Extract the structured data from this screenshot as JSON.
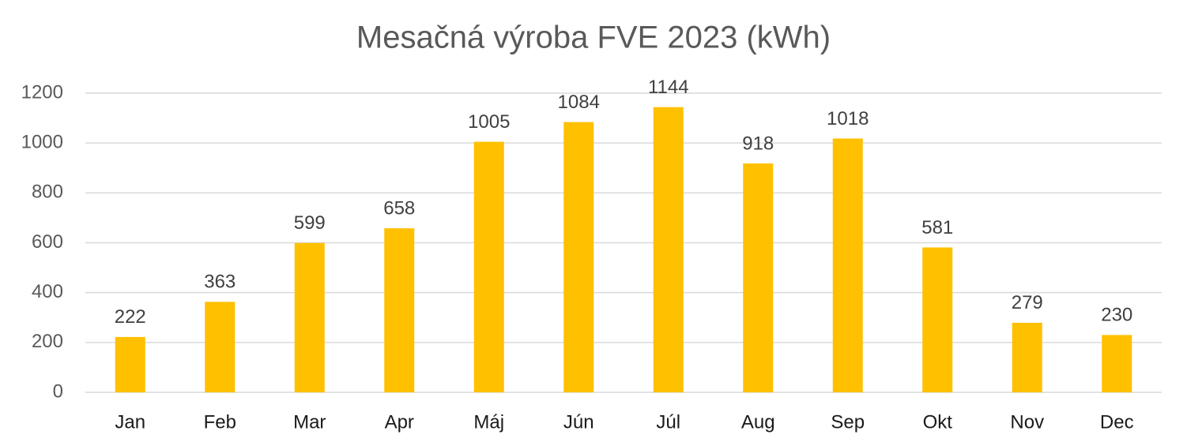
{
  "chart_data": {
    "type": "bar",
    "title": "Mesačná výroba FVE 2023 (kWh)",
    "categories": [
      "Jan",
      "Feb",
      "Mar",
      "Apr",
      "Máj",
      "Jún",
      "Júl",
      "Aug",
      "Sep",
      "Okt",
      "Nov",
      "Dec"
    ],
    "values": [
      222,
      363,
      599,
      658,
      1005,
      1084,
      1144,
      918,
      1018,
      581,
      279,
      230
    ],
    "color": "#ffc000",
    "ylim": [
      0,
      1200
    ],
    "yticks": [
      0,
      200,
      400,
      600,
      800,
      1000,
      1200
    ],
    "grid": true,
    "data_labels": true
  }
}
